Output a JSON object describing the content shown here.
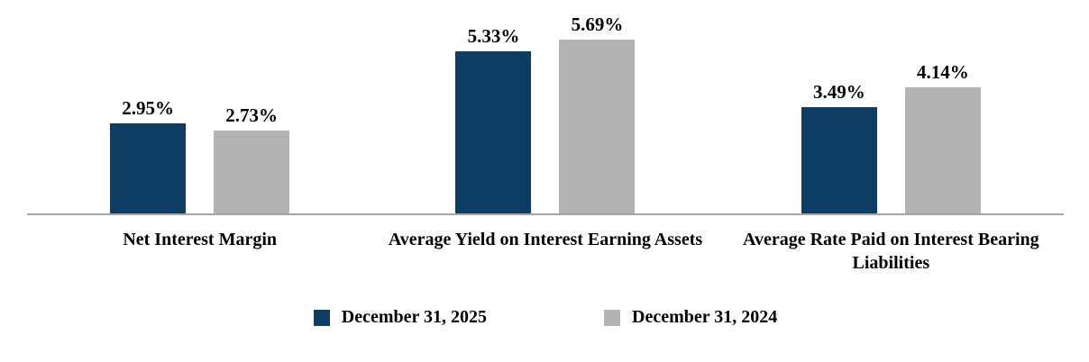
{
  "chart_data": {
    "type": "bar",
    "categories": [
      "Net Interest Margin",
      "Average Yield on Interest Earning Assets",
      "Average Rate Paid on Interest Bearing Liabilities"
    ],
    "series": [
      {
        "name": "December 31, 2025",
        "color": "#0e3d63",
        "values": [
          2.95,
          5.33,
          3.49
        ],
        "labels": [
          "2.95%",
          "5.33%",
          "3.49%"
        ]
      },
      {
        "name": "December 31, 2024",
        "color": "#b3b3b3",
        "values": [
          2.73,
          5.69,
          4.14
        ],
        "labels": [
          "2.73%",
          "5.69%",
          "4.14%"
        ]
      }
    ],
    "ylim": [
      0,
      7
    ],
    "value_suffix": "%",
    "grid": false,
    "data_labels": true,
    "legend_position": "bottom",
    "axis_line_color": "#a6a6a6"
  }
}
